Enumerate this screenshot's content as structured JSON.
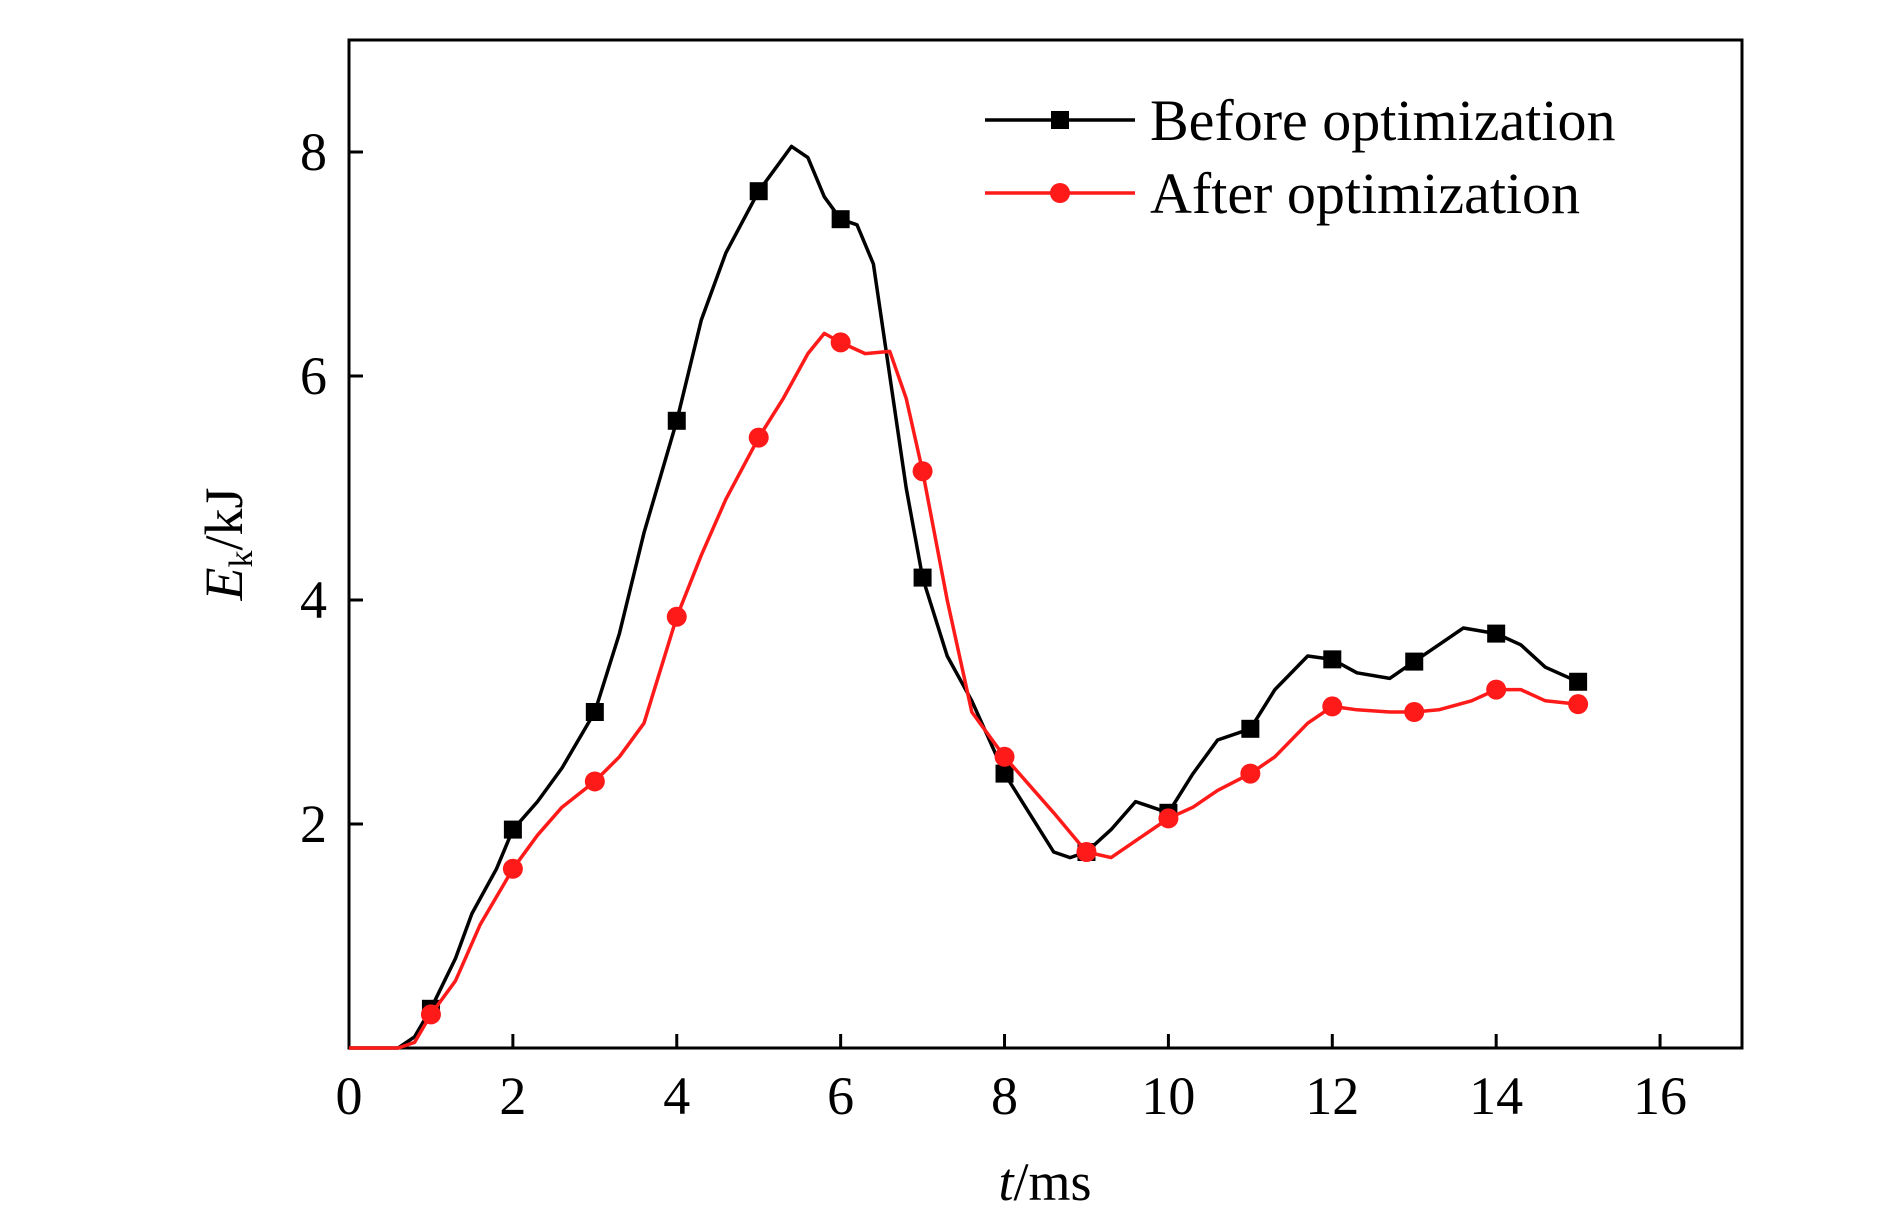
{
  "chart_data": {
    "type": "line",
    "xlabel": {
      "italic": "t",
      "rest": "/ms"
    },
    "ylabel": {
      "italic": "E",
      "sub": "k",
      "rest": "/kJ"
    },
    "xlim": [
      0,
      17
    ],
    "ylim": [
      0,
      9
    ],
    "xticks": [
      "0",
      "2",
      "4",
      "6",
      "8",
      "10",
      "12",
      "14",
      "16"
    ],
    "yticks": [
      "2",
      "4",
      "6",
      "8"
    ],
    "grid": false,
    "legend_position": "top-right",
    "series": [
      {
        "name": "Before optimization",
        "color": "#000000",
        "marker": "square",
        "markers_x": [
          1,
          2,
          3,
          4,
          5,
          6,
          7,
          8,
          9,
          10,
          11,
          12,
          13,
          14,
          15
        ],
        "x": [
          0,
          0.3,
          0.6,
          0.8,
          1.0,
          1.3,
          1.5,
          1.8,
          2.0,
          2.3,
          2.6,
          3.0,
          3.3,
          3.6,
          4.0,
          4.3,
          4.6,
          5.0,
          5.2,
          5.4,
          5.6,
          5.8,
          6.0,
          6.2,
          6.4,
          6.6,
          6.8,
          7.0,
          7.3,
          7.6,
          8.0,
          8.3,
          8.6,
          8.8,
          9.0,
          9.3,
          9.6,
          10.0,
          10.3,
          10.6,
          11.0,
          11.3,
          11.7,
          12.0,
          12.3,
          12.7,
          13.0,
          13.3,
          13.6,
          14.0,
          14.3,
          14.6,
          15.0
        ],
        "y": [
          0,
          0,
          0,
          0.1,
          0.35,
          0.8,
          1.2,
          1.6,
          1.95,
          2.2,
          2.5,
          3.0,
          3.7,
          4.6,
          5.6,
          6.5,
          7.1,
          7.65,
          7.85,
          8.05,
          7.95,
          7.6,
          7.4,
          7.35,
          7.0,
          6.0,
          5.0,
          4.2,
          3.5,
          3.1,
          2.45,
          2.1,
          1.75,
          1.7,
          1.75,
          1.95,
          2.2,
          2.1,
          2.45,
          2.75,
          2.85,
          3.2,
          3.5,
          3.47,
          3.35,
          3.3,
          3.45,
          3.6,
          3.75,
          3.7,
          3.6,
          3.4,
          3.27
        ]
      },
      {
        "name": "After optimization",
        "color": "#ff1a1a",
        "marker": "circle",
        "markers_x": [
          1,
          2,
          3,
          4,
          5,
          6,
          7,
          8,
          9,
          10,
          11,
          12,
          13,
          14,
          15
        ],
        "x": [
          0,
          0.3,
          0.6,
          0.8,
          1.0,
          1.3,
          1.6,
          2.0,
          2.3,
          2.6,
          3.0,
          3.3,
          3.6,
          4.0,
          4.3,
          4.6,
          5.0,
          5.3,
          5.6,
          5.8,
          6.0,
          6.3,
          6.6,
          6.8,
          7.0,
          7.3,
          7.6,
          8.0,
          8.3,
          8.6,
          9.0,
          9.3,
          9.6,
          10.0,
          10.3,
          10.6,
          11.0,
          11.3,
          11.7,
          12.0,
          12.3,
          12.7,
          13.0,
          13.3,
          13.7,
          14.0,
          14.3,
          14.6,
          15.0
        ],
        "y": [
          0,
          0,
          0,
          0.05,
          0.3,
          0.6,
          1.1,
          1.6,
          1.9,
          2.15,
          2.38,
          2.6,
          2.9,
          3.85,
          4.4,
          4.9,
          5.45,
          5.8,
          6.2,
          6.38,
          6.3,
          6.2,
          6.22,
          5.8,
          5.15,
          4.0,
          3.0,
          2.6,
          2.35,
          2.1,
          1.75,
          1.7,
          1.85,
          2.05,
          2.15,
          2.3,
          2.45,
          2.6,
          2.9,
          3.05,
          3.02,
          3.0,
          3.0,
          3.02,
          3.1,
          3.2,
          3.2,
          3.1,
          3.07
        ]
      }
    ]
  }
}
